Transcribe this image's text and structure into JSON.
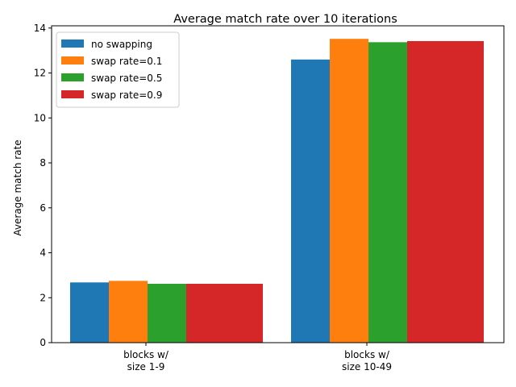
{
  "chart_data": {
    "type": "bar",
    "title": "Average match rate over 10 iterations",
    "xlabel": "",
    "ylabel": "Average match rate",
    "ylim": [
      0,
      14.1
    ],
    "yticks": [
      "0",
      "2",
      "4",
      "6",
      "8",
      "10",
      "12",
      "14"
    ],
    "categories": [
      [
        "blocks w/",
        "size 1-9"
      ],
      [
        "blocks w/",
        "size 10-49"
      ]
    ],
    "series": [
      {
        "name": "no swapping",
        "color": "#1f77b4",
        "values": [
          2.68,
          12.6
        ]
      },
      {
        "name": "swap rate=0.1",
        "color": "#ff7f0e",
        "values": [
          2.75,
          13.52
        ]
      },
      {
        "name": "swap rate=0.5",
        "color": "#2ca02c",
        "values": [
          2.62,
          13.37
        ]
      },
      {
        "name": "swap rate=0.9",
        "color": "#d62728",
        "values": [
          2.62,
          13.42
        ]
      }
    ],
    "grid": false,
    "legend_position": "top-left"
  }
}
